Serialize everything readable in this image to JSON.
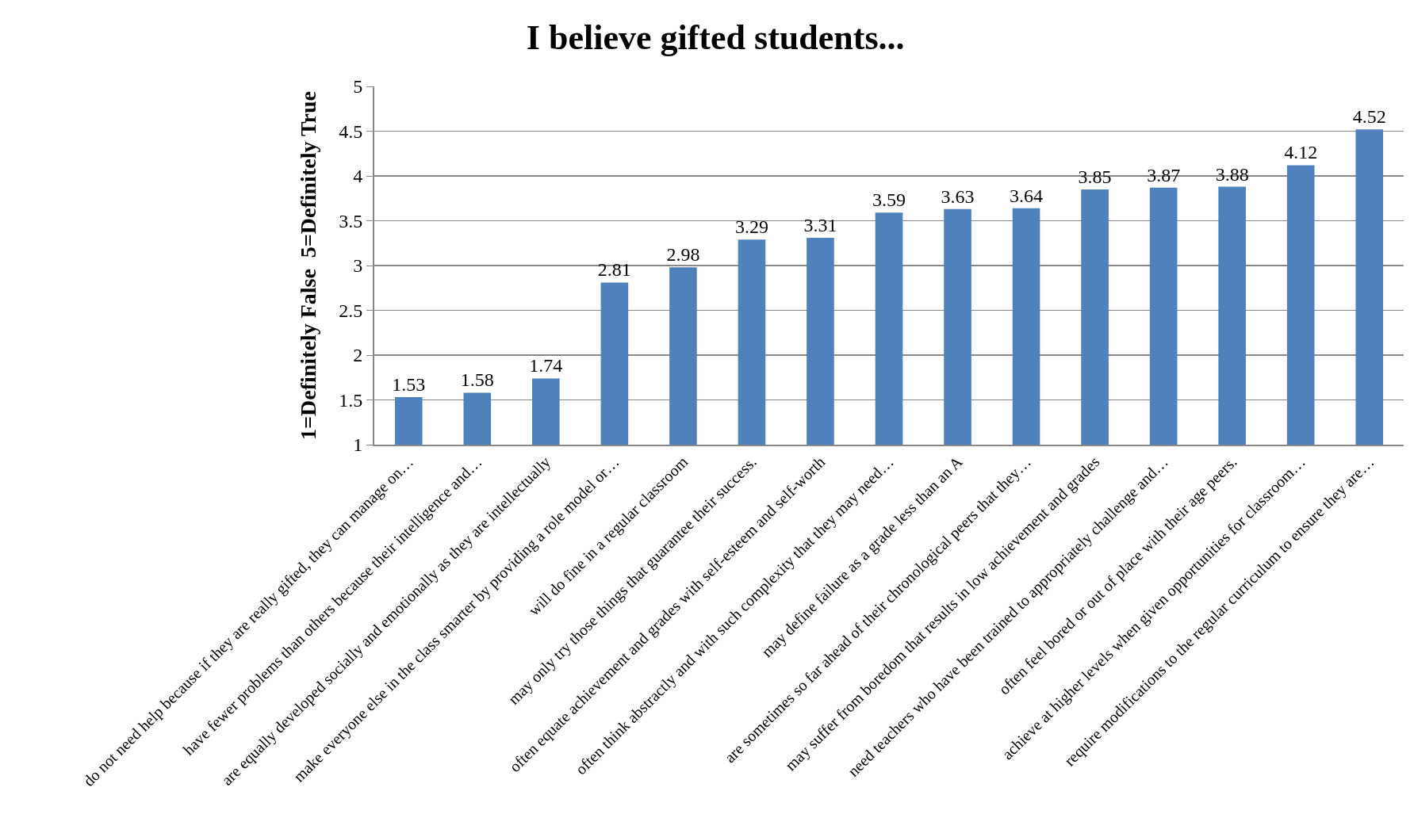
{
  "chart_data": {
    "type": "bar",
    "title": "I believe gifted students...",
    "ylabel": "1=Definitely False  5=Definitely True",
    "categories": [
      "do not need help because if they are really gifted, they can manage on…",
      "have fewer problems than others because their intelligence and…",
      "are equally developed socially and emotionally as they are intellectually",
      "make everyone else in the class smarter by providing a role model or…",
      "will do fine in a regular classroom",
      "may only try those things that guarantee their success.",
      "often equate achievement and grades with self-esteem and self-worth",
      "often think abstractly and with such complexity that they may need…",
      "may define failure as a grade less than an A",
      "are sometimes so far ahead of their chronological peers that they…",
      "may suffer from boredom that results in low achievement and grades",
      "need teachers who have been trained to appropriately challenge and…",
      "often feel bored or out of place with their age peers.",
      "achieve at higher levels when given opportunities for classroom…",
      "require modifications to the regular curriculum to ensure they are…"
    ],
    "values": [
      1.53,
      1.58,
      1.74,
      2.81,
      2.98,
      3.29,
      3.31,
      3.59,
      3.63,
      3.64,
      3.85,
      3.87,
      3.88,
      4.12,
      4.52
    ],
    "color": "#4f81bd",
    "ylim": [
      1,
      5
    ],
    "yticks": [
      1,
      1.5,
      2,
      2.5,
      3,
      3.5,
      4,
      4.5,
      5
    ],
    "grid": "y",
    "data_labels": true
  }
}
